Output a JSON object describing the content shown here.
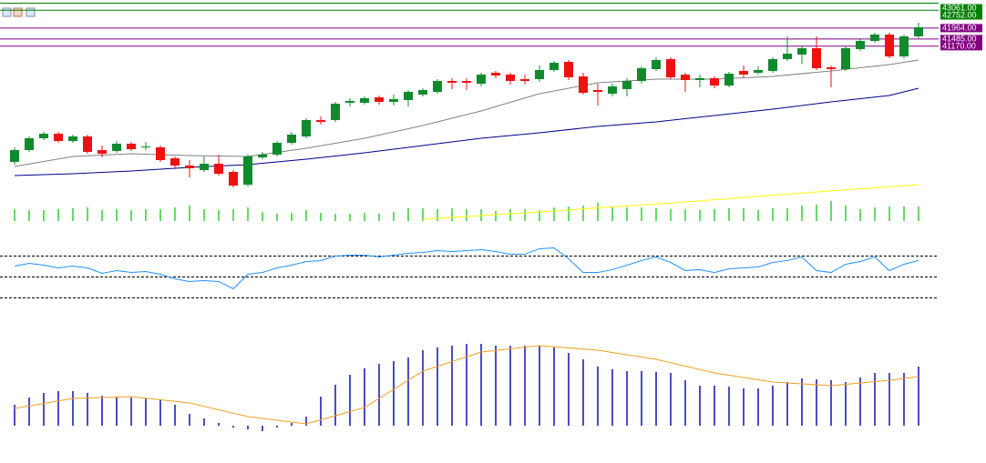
{
  "chart_data": [
    {
      "type": "candlestick",
      "ylim": [
        34800,
        43200
      ],
      "up_color": "#118a2e",
      "down_color": "#ee1111",
      "open": [
        36080,
        36600,
        37120,
        37320,
        37000,
        37200,
        36600,
        36560,
        36880,
        36720,
        36720,
        36240,
        35920,
        35720,
        36000,
        35640,
        35080,
        36280,
        36400,
        36920,
        37200,
        37920,
        37920,
        38680,
        38680,
        38920,
        38720,
        38800,
        39040,
        39160,
        39640,
        39640,
        39520,
        40000,
        39920,
        39720,
        39720,
        40120,
        40480,
        39840,
        39240,
        39080,
        39280,
        39640,
        40160,
        40600,
        39920,
        39680,
        39760,
        39440,
        40080,
        40000,
        40080,
        40600,
        40800,
        41080,
        40240,
        40160,
        41040,
        41400,
        41680,
        40720,
        41600
      ],
      "high": [
        36720,
        37200,
        37400,
        37400,
        37280,
        37280,
        36800,
        37000,
        36960,
        36960,
        36800,
        36320,
        36160,
        36320,
        36400,
        35720,
        36400,
        36520,
        37000,
        37400,
        38000,
        38080,
        38720,
        38880,
        38960,
        39000,
        39040,
        39240,
        39320,
        39720,
        39760,
        39760,
        40000,
        40080,
        40000,
        39920,
        40320,
        40520,
        40560,
        40000,
        39520,
        39520,
        39760,
        40280,
        40680,
        40680,
        40000,
        39920,
        39840,
        40040,
        40320,
        40280,
        40680,
        41600,
        41200,
        41600,
        40320,
        41160,
        41520,
        41760,
        41760,
        41680,
        42200
      ],
      "low": [
        35960,
        36520,
        37040,
        36920,
        36920,
        36440,
        36280,
        36480,
        36560,
        36600,
        36080,
        35760,
        35400,
        35640,
        35480,
        34960,
        35000,
        36200,
        36320,
        36840,
        37120,
        37720,
        37840,
        38520,
        38600,
        38600,
        38560,
        38520,
        38960,
        39080,
        39280,
        39240,
        39400,
        39760,
        39480,
        39480,
        39600,
        40040,
        39680,
        39040,
        38560,
        38960,
        38960,
        39520,
        40080,
        39720,
        39160,
        39360,
        39320,
        39360,
        39800,
        39920,
        40000,
        40520,
        40400,
        40120,
        39360,
        40080,
        40960,
        41320,
        40640,
        40640,
        41520
      ],
      "close": [
        36600,
        37120,
        37320,
        37000,
        37200,
        36520,
        36440,
        36880,
        36640,
        36760,
        36160,
        35920,
        35800,
        36000,
        35560,
        35040,
        36320,
        36400,
        36920,
        37280,
        37920,
        37840,
        38640,
        38760,
        38880,
        38720,
        38840,
        39160,
        39240,
        39640,
        39560,
        39560,
        39920,
        39880,
        39640,
        39640,
        40120,
        40440,
        39800,
        39120,
        39160,
        39400,
        39640,
        40200,
        40560,
        39800,
        39680,
        39760,
        39440,
        39960,
        39920,
        40120,
        40600,
        40840,
        41080,
        40200,
        40160,
        41080,
        41400,
        41680,
        40720,
        41600,
        42000
      ],
      "moving_averages": [
        {
          "color": "#808080",
          "x": [
            0,
            4,
            8,
            12,
            16,
            20,
            24,
            28,
            32,
            36,
            40,
            44,
            48,
            52,
            56,
            60,
            62
          ],
          "values": [
            35880,
            36320,
            36440,
            36360,
            36320,
            36680,
            37120,
            37680,
            38320,
            39080,
            39560,
            39720,
            39720,
            39840,
            40080,
            40360,
            40560
          ]
        },
        {
          "color": "#00008b",
          "x": [
            0,
            4,
            8,
            12,
            16,
            20,
            24,
            28,
            32,
            36,
            40,
            44,
            48,
            52,
            56,
            60,
            62
          ],
          "values": [
            35480,
            35560,
            35680,
            35840,
            35960,
            36200,
            36480,
            36800,
            37120,
            37360,
            37640,
            37840,
            38120,
            38400,
            38720,
            39000,
            39320
          ]
        }
      ],
      "levels": [
        {
          "value": 43061,
          "label": "43061.00",
          "color": "#008000"
        },
        {
          "value": 42752,
          "label": "42752.00",
          "color": "#008000"
        },
        {
          "value": 41964,
          "label": "41964.00",
          "color": "#800080"
        },
        {
          "value": 41485,
          "label": "41485.00",
          "color": "#800080"
        },
        {
          "value": 41170,
          "label": "41170.00",
          "color": "#800080"
        }
      ]
    },
    {
      "type": "bar",
      "ylim": [
        0,
        50
      ],
      "color": "#32cd32",
      "values": [
        13,
        12,
        12,
        13,
        14,
        15,
        12,
        13,
        12,
        13,
        13,
        15,
        17,
        13,
        12,
        13,
        15,
        10,
        8,
        9,
        12,
        9,
        8,
        8,
        9,
        8,
        10,
        14,
        14,
        13,
        14,
        13,
        13,
        11,
        13,
        13,
        12,
        15,
        16,
        17,
        20,
        16,
        15,
        15,
        14,
        13,
        13,
        12,
        13,
        14,
        14,
        12,
        14,
        14,
        17,
        18,
        22,
        17,
        13,
        15,
        16,
        16,
        16
      ],
      "line": {
        "color": "#ffff00",
        "x": [
          28,
          36,
          46,
          55,
          62
        ],
        "values": [
          2,
          10,
          21,
          32,
          40
        ]
      }
    },
    {
      "type": "line",
      "ylim": [
        20,
        80
      ],
      "color": "#1e90ff",
      "levels": [
        70,
        50,
        30
      ],
      "values": [
        60.4,
        63,
        61.3,
        58.7,
        60.4,
        58.7,
        53.5,
        56.1,
        54.3,
        55.2,
        52.6,
        48.3,
        45.7,
        46.5,
        45.7,
        38.7,
        52.6,
        54.3,
        58.7,
        61.3,
        64.8,
        65.7,
        70,
        70.9,
        70.9,
        69.1,
        70.9,
        72.6,
        73.5,
        75.2,
        74.3,
        75.2,
        76.1,
        74.3,
        71.7,
        71.7,
        77,
        77.8,
        67.4,
        54.3,
        54.3,
        57,
        61.3,
        65.7,
        69.1,
        63.9,
        56.1,
        57,
        54.3,
        57.8,
        58.7,
        59.6,
        63.9,
        65.7,
        69.1,
        56.1,
        54.3,
        62.2,
        64.8,
        69.1,
        56.1,
        62.2,
        65.7
      ]
    },
    {
      "type": "bar",
      "ylim": [
        -12,
        118
      ],
      "color": "#1010b0",
      "values": [
        23,
        31,
        36,
        38,
        38,
        36,
        33,
        32,
        31,
        30,
        28,
        23,
        13,
        8,
        3,
        -2,
        -4,
        -6,
        -2,
        3,
        10,
        32,
        45,
        56,
        63,
        68,
        71,
        75,
        83,
        86,
        88,
        90,
        90,
        88,
        88,
        88,
        88,
        86,
        80,
        73,
        65,
        62,
        60,
        60,
        59,
        58,
        50,
        44,
        44,
        43,
        41,
        41,
        44,
        48,
        52,
        51,
        50,
        48,
        53,
        58,
        58,
        58,
        65
      ],
      "line": {
        "color": "#f0a020",
        "x": [
          0,
          4,
          8,
          12,
          16,
          20,
          24,
          28,
          32,
          36,
          40,
          44,
          48,
          52,
          56,
          60,
          62
        ],
        "values": [
          19,
          30,
          32,
          25,
          10,
          2,
          20,
          60,
          81,
          88,
          83,
          73,
          58,
          48,
          44,
          50,
          54
        ]
      }
    }
  ]
}
